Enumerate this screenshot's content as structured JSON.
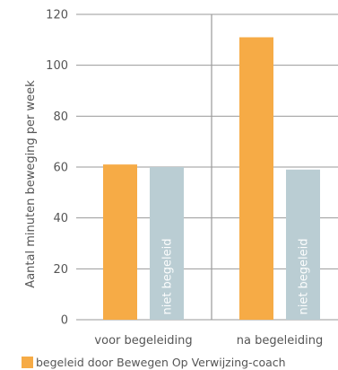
{
  "chart_data": {
    "type": "bar",
    "ylabel": "Aantal minuten beweging per week",
    "ylim": [
      0,
      120
    ],
    "yticks": [
      0,
      20,
      40,
      60,
      80,
      100,
      120
    ],
    "categories": [
      "voor begeleiding",
      "na begeleiding"
    ],
    "series": [
      {
        "name": "begeleid door Bewegen Op Verwijzing-coach",
        "color": "#f6ab46",
        "values": [
          61,
          111
        ]
      },
      {
        "name": "",
        "color": "#bacdd3",
        "values": [
          60,
          59
        ],
        "bar_label": "niet begeleid"
      }
    ],
    "grid": true,
    "legend_position": "bottom"
  }
}
